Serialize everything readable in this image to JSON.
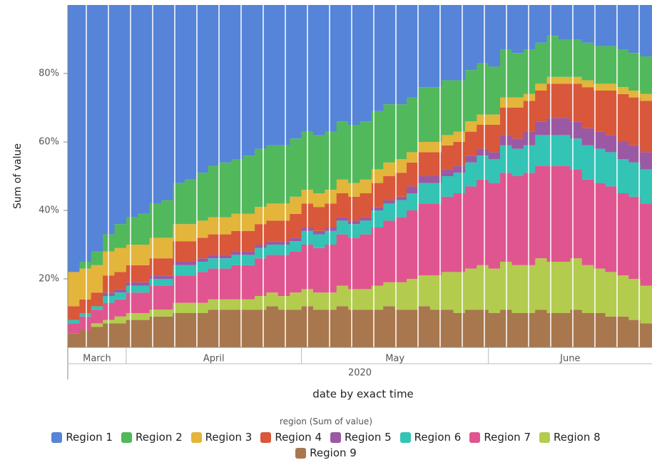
{
  "chart_data": {
    "type": "stacked_bar",
    "y_axis_label": "Sum of value",
    "x_axis_label": "date by exact time",
    "year": "2020",
    "legend_title": "region (Sum of value)",
    "categories": [
      "March",
      "March",
      "March",
      "March",
      "March",
      "April",
      "April",
      "April",
      "April",
      "April",
      "April",
      "April",
      "April",
      "April",
      "April",
      "April",
      "April",
      "April",
      "April",
      "April",
      "May",
      "May",
      "May",
      "May",
      "May",
      "May",
      "May",
      "May",
      "May",
      "May",
      "May",
      "May",
      "May",
      "May",
      "May",
      "May",
      "June",
      "June",
      "June",
      "June",
      "June",
      "June",
      "June",
      "June",
      "June",
      "June",
      "June",
      "June",
      "June",
      "June"
    ],
    "ylim": [
      0,
      100
    ],
    "yticks": [
      {
        "value": 20,
        "label": "20%"
      },
      {
        "value": 40,
        "label": "40%"
      },
      {
        "value": 60,
        "label": "60%"
      },
      {
        "value": 80,
        "label": "80%"
      }
    ],
    "series": [
      {
        "name": "Region 1",
        "color": "#5584d8",
        "values": [
          78,
          75,
          72,
          67,
          64,
          62,
          61,
          58,
          57,
          52,
          51,
          49,
          47,
          46,
          45,
          44,
          42,
          41,
          41,
          39,
          37,
          38,
          37,
          34,
          35,
          34,
          31,
          29,
          29,
          27,
          24,
          24,
          22,
          22,
          19,
          17,
          18,
          13,
          14,
          13,
          11,
          9,
          10,
          10,
          11,
          12,
          12,
          13,
          14,
          15
        ]
      },
      {
        "name": "Region 2",
        "color": "#52b85c",
        "values": [
          0,
          2,
          4,
          5,
          7,
          8,
          9,
          10,
          11,
          12,
          13,
          14,
          15,
          16,
          16,
          17,
          17,
          17,
          17,
          17,
          17,
          17,
          17,
          17,
          17,
          17,
          17,
          17,
          16,
          16,
          16,
          16,
          16,
          15,
          15,
          15,
          14,
          14,
          13,
          13,
          12,
          12,
          11,
          11,
          11,
          11,
          11,
          11,
          11,
          11
        ]
      },
      {
        "name": "Region 3",
        "color": "#e3b53a",
        "values": [
          10,
          9,
          8,
          7,
          7,
          6,
          6,
          6,
          6,
          5,
          5,
          5,
          5,
          5,
          5,
          5,
          5,
          5,
          5,
          5,
          4,
          4,
          4,
          4,
          4,
          4,
          4,
          4,
          4,
          3,
          3,
          3,
          3,
          3,
          3,
          3,
          3,
          3,
          3,
          2,
          2,
          2,
          2,
          2,
          2,
          2,
          2,
          2,
          2,
          2
        ]
      },
      {
        "name": "Region 4",
        "color": "#d9573a",
        "values": [
          4,
          4,
          4,
          5,
          5,
          5,
          5,
          5,
          5,
          6,
          6,
          6,
          6,
          6,
          6,
          6,
          6,
          6,
          6,
          7,
          7,
          7,
          7,
          7,
          7,
          7,
          7,
          7,
          7,
          7,
          7,
          7,
          7,
          7,
          7,
          7,
          8,
          8,
          9,
          9,
          9,
          10,
          10,
          11,
          12,
          12,
          13,
          14,
          14,
          15
        ]
      },
      {
        "name": "Region 5",
        "color": "#9b59a3",
        "values": [
          0,
          0,
          0,
          1,
          1,
          1,
          1,
          1,
          1,
          1,
          1,
          1,
          1,
          1,
          1,
          1,
          1,
          1,
          1,
          1,
          1,
          1,
          1,
          1,
          1,
          1,
          1,
          1,
          1,
          2,
          2,
          2,
          2,
          2,
          2,
          2,
          2,
          3,
          3,
          4,
          4,
          5,
          5,
          5,
          5,
          5,
          5,
          5,
          5,
          5
        ]
      },
      {
        "name": "Region 6",
        "color": "#33c4b6",
        "values": [
          1,
          1,
          1,
          2,
          2,
          2,
          2,
          2,
          2,
          3,
          3,
          3,
          3,
          3,
          3,
          3,
          3,
          3,
          3,
          3,
          4,
          4,
          4,
          4,
          4,
          4,
          5,
          5,
          5,
          5,
          6,
          6,
          6,
          6,
          7,
          7,
          7,
          8,
          8,
          8,
          9,
          9,
          9,
          9,
          10,
          10,
          10,
          10,
          10,
          10
        ]
      },
      {
        "name": "Region 7",
        "color": "#e0558f",
        "values": [
          3,
          4,
          4,
          5,
          5,
          6,
          6,
          7,
          7,
          8,
          8,
          9,
          9,
          9,
          10,
          10,
          11,
          11,
          12,
          12,
          13,
          13,
          14,
          15,
          15,
          16,
          17,
          18,
          19,
          20,
          21,
          21,
          22,
          23,
          24,
          25,
          25,
          26,
          26,
          27,
          27,
          28,
          28,
          26,
          25,
          25,
          25,
          24,
          24,
          24
        ]
      },
      {
        "name": "Region 8",
        "color": "#b3cc4e",
        "values": [
          0,
          0,
          1,
          1,
          2,
          2,
          2,
          2,
          2,
          3,
          3,
          3,
          3,
          3,
          3,
          3,
          4,
          4,
          4,
          5,
          5,
          5,
          5,
          6,
          6,
          6,
          7,
          7,
          8,
          9,
          9,
          10,
          11,
          12,
          12,
          13,
          13,
          14,
          14,
          14,
          15,
          15,
          15,
          15,
          14,
          13,
          13,
          12,
          12,
          11
        ]
      },
      {
        "name": "Region 9",
        "color": "#a8774d",
        "values": [
          4,
          5,
          6,
          7,
          7,
          8,
          8,
          9,
          9,
          10,
          10,
          10,
          11,
          11,
          11,
          11,
          11,
          12,
          11,
          11,
          12,
          11,
          11,
          12,
          11,
          11,
          11,
          12,
          11,
          11,
          12,
          11,
          11,
          10,
          11,
          11,
          10,
          11,
          10,
          10,
          11,
          10,
          10,
          11,
          10,
          10,
          9,
          9,
          8,
          7
        ]
      }
    ]
  }
}
